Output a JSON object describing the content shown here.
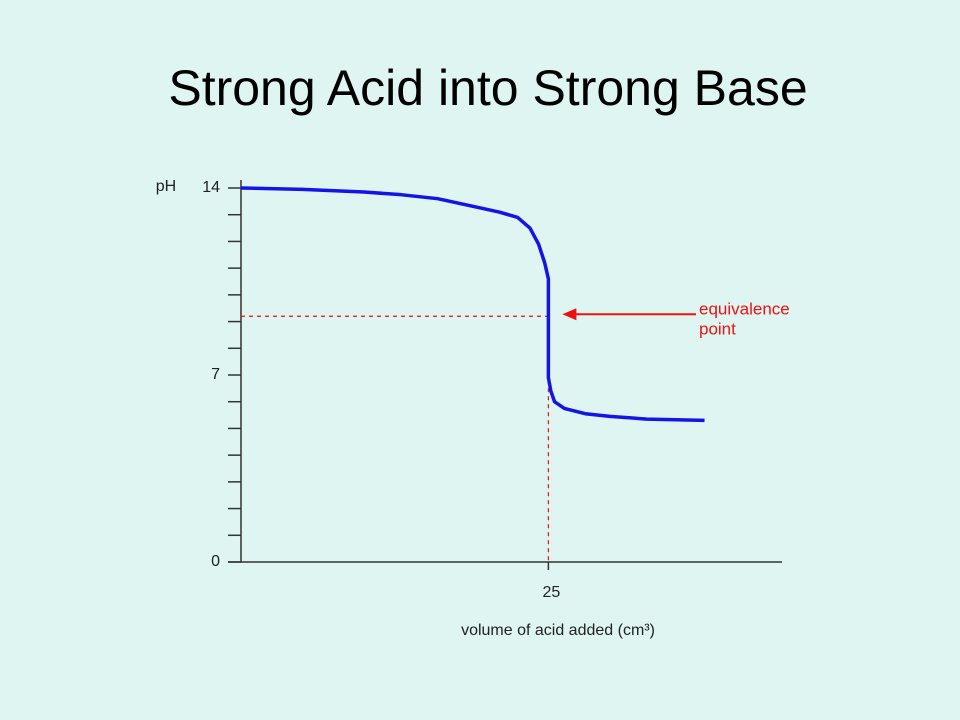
{
  "chart_data": {
    "type": "line",
    "title": "Strong Acid into Strong Base",
    "y_label": "pH",
    "x_label": "volume of acid added (cm³)",
    "x": [
      0,
      5,
      10,
      13,
      16,
      19,
      21,
      22.5,
      23.5,
      24.2,
      24.7,
      25,
      25,
      25.2,
      25.5,
      26.3,
      28,
      30,
      33,
      37.7
    ],
    "values": [
      14,
      13.95,
      13.85,
      13.75,
      13.6,
      13.3,
      13.1,
      12.9,
      12.5,
      11.9,
      11.2,
      10.6,
      6.9,
      6.4,
      6.0,
      5.75,
      5.55,
      5.45,
      5.35,
      5.3
    ],
    "color": "#1414e6",
    "xlim": [
      0,
      44
    ],
    "xticks": [
      25
    ],
    "ylim": [
      0,
      14
    ],
    "yticks": [
      0,
      7,
      14
    ],
    "yminor_ticks": [
      1,
      2,
      3,
      4,
      5,
      6,
      8,
      9,
      10,
      11,
      12,
      13
    ],
    "annotation": {
      "text": [
        "equivalence",
        "point"
      ],
      "x": 25,
      "y": 9.2,
      "color": "#ee1111"
    }
  }
}
